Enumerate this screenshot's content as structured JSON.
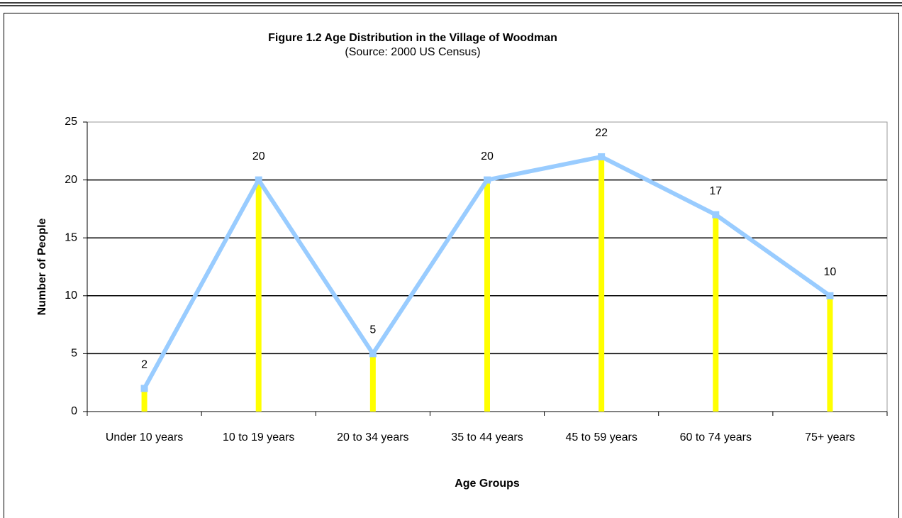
{
  "chart_data": {
    "type": "line",
    "title": "Figure 1.2 Age Distribution in the Village of Woodman",
    "subtitle": "(Source: 2000 US Census)",
    "x_label": "Age Groups",
    "y_label": "Number of People",
    "categories": [
      "Under 10 years",
      "10 to 19 years",
      "20 to 34 years",
      "35 to 44 years",
      "45 to 59 years",
      "60 to 74 years",
      "75+ years"
    ],
    "series": [
      {
        "name": "Number of People",
        "color": "#99ccff",
        "values": [
          2,
          20,
          5,
          20,
          22,
          17,
          10
        ]
      }
    ],
    "drop_line_color": "#ffff00",
    "ylim": [
      0,
      25
    ],
    "yticks": [
      0,
      5,
      10,
      15,
      20,
      25
    ],
    "grid": true
  }
}
